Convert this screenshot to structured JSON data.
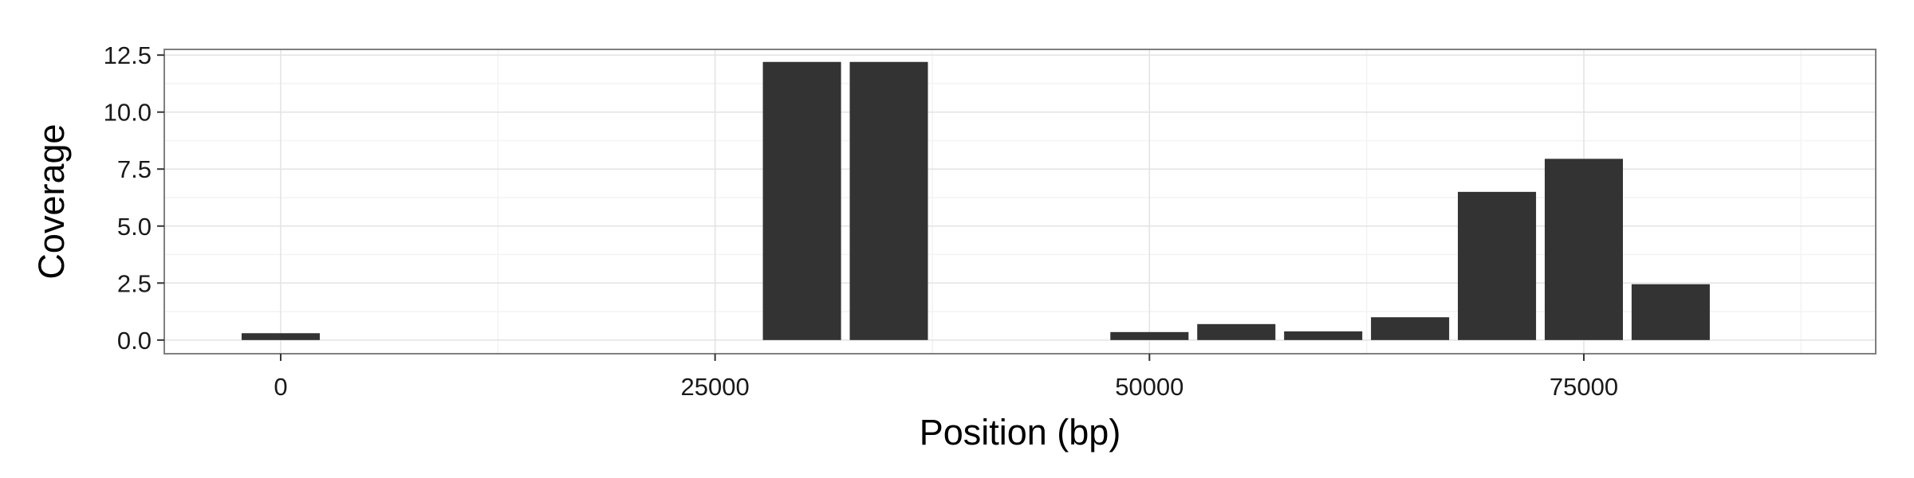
{
  "chart_data": {
    "type": "bar",
    "title": "",
    "xlabel": "Position (bp)",
    "ylabel": "Coverage",
    "xlim": [
      -6700,
      91800
    ],
    "ylim": [
      -0.6,
      12.75
    ],
    "x_ticks": [
      0,
      25000,
      50000,
      75000
    ],
    "x_tick_labels": [
      "0",
      "25000",
      "50000",
      "75000"
    ],
    "y_ticks": [
      0.0,
      2.5,
      5.0,
      7.5,
      10.0,
      12.5
    ],
    "y_tick_labels": [
      "0.0",
      "2.5",
      "5.0",
      "7.5",
      "10.0",
      "12.5"
    ],
    "bin_width": 5000,
    "x": [
      0,
      5000,
      10000,
      15000,
      20000,
      25000,
      30000,
      35000,
      40000,
      45000,
      50000,
      55000,
      60000,
      65000,
      70000,
      75000,
      80000,
      85000
    ],
    "values": [
      0.3,
      0,
      0,
      0,
      0,
      0,
      12.2,
      12.2,
      0,
      0,
      0.35,
      0.7,
      0.38,
      1.0,
      6.5,
      7.95,
      2.45,
      0
    ],
    "grid": true,
    "legend": "none",
    "colors": {
      "bar": "#333333",
      "panel_border": "#7f7f7f",
      "grid_major": "#e3e3e3",
      "grid_minor": "#f3f3f3",
      "axis_text": "#1a1a1a"
    }
  }
}
